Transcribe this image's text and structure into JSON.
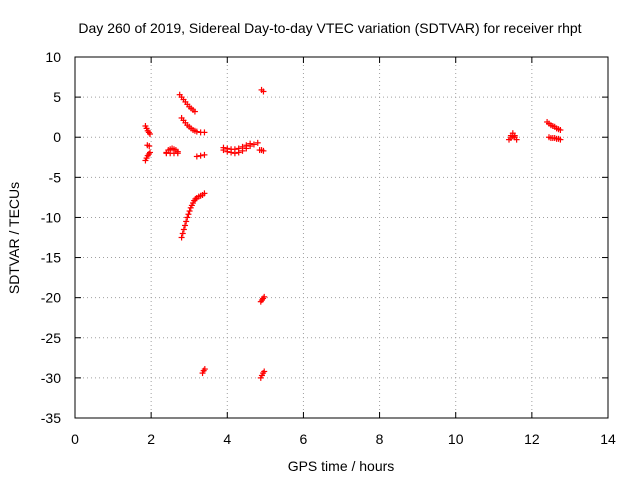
{
  "chart_data": {
    "type": "scatter",
    "title": "Day 260 of 2019, Sidereal Day-to-day VTEC variation (SDTVAR) for receiver rhpt",
    "xlabel": "GPS time / hours",
    "ylabel": "SDTVAR / TECUs",
    "xlim": [
      0,
      14
    ],
    "ylim": [
      -35,
      10
    ],
    "xticks": [
      0,
      2,
      4,
      6,
      8,
      10,
      12,
      14
    ],
    "yticks": [
      10,
      5,
      0,
      -5,
      -10,
      -15,
      -20,
      -25,
      -30,
      -35
    ],
    "xtick_labels": [
      "0",
      "2",
      "4",
      "6",
      "8",
      "10",
      "12",
      "14"
    ],
    "ytick_labels": [
      "10",
      "5",
      "0",
      "-5",
      "-10",
      "-15",
      "-20",
      "-25",
      "-30",
      "-35"
    ],
    "grid": true,
    "marker": "plus",
    "color": "#ff0000",
    "series": [
      {
        "segments": [
          {
            "x": [
              1.85,
              1.88,
              1.91,
              1.94,
              1.97
            ],
            "y": [
              1.4,
              1.1,
              0.8,
              0.6,
              0.4
            ]
          },
          {
            "x": [
              1.9,
              1.95
            ],
            "y": [
              -1.0,
              -1.1
            ]
          },
          {
            "x": [
              1.85,
              1.88,
              1.91,
              1.94,
              1.97
            ],
            "y": [
              -2.9,
              -2.6,
              -2.3,
              -2.1,
              -1.9
            ]
          },
          {
            "x": [
              2.4,
              2.45,
              2.5,
              2.55,
              2.6,
              2.65,
              2.7
            ],
            "y": [
              -1.9,
              -1.6,
              -1.5,
              -1.4,
              -1.5,
              -1.6,
              -1.8
            ]
          },
          {
            "x": [
              2.4,
              2.5,
              2.6,
              2.7
            ],
            "y": [
              -2.0,
              -2.0,
              -2.0,
              -2.0
            ]
          },
          {
            "x": [
              2.75,
              2.8,
              2.85,
              2.9,
              2.95,
              3.0,
              3.05,
              3.1,
              3.15
            ],
            "y": [
              5.3,
              5.0,
              4.7,
              4.4,
              4.1,
              3.8,
              3.6,
              3.4,
              3.2
            ]
          },
          {
            "x": [
              2.8,
              2.85,
              2.9,
              2.95,
              3.0,
              3.05,
              3.1,
              3.15,
              3.2,
              3.3,
              3.4
            ],
            "y": [
              2.4,
              2.1,
              1.8,
              1.5,
              1.3,
              1.1,
              0.9,
              0.8,
              0.7,
              0.6,
              0.6
            ]
          },
          {
            "x": [
              3.2,
              3.3,
              3.4
            ],
            "y": [
              -2.4,
              -2.3,
              -2.2
            ]
          },
          {
            "x": [
              2.8,
              2.83,
              2.86,
              2.89,
              2.92,
              2.95,
              2.98,
              3.01,
              3.04,
              3.07,
              3.1,
              3.13,
              3.16,
              3.19
            ],
            "y": [
              -12.5,
              -12.0,
              -11.5,
              -11.0,
              -10.5,
              -10.0,
              -9.6,
              -9.2,
              -8.8,
              -8.5,
              -8.2,
              -7.9,
              -7.7,
              -7.6
            ]
          },
          {
            "x": [
              3.2,
              3.25,
              3.3,
              3.35,
              3.4
            ],
            "y": [
              -7.6,
              -7.4,
              -7.3,
              -7.2,
              -7.0
            ]
          },
          {
            "x": [
              3.9,
              4.0,
              4.1,
              4.2,
              4.3,
              4.4,
              4.5,
              4.6,
              4.7,
              4.8
            ],
            "y": [
              -1.6,
              -1.8,
              -1.9,
              -2.0,
              -1.9,
              -1.7,
              -1.4,
              -1.1,
              -0.9,
              -0.7
            ]
          },
          {
            "x": [
              3.9,
              4.0,
              4.1,
              4.2,
              4.3,
              4.4,
              4.5,
              4.6
            ],
            "y": [
              -1.3,
              -1.4,
              -1.5,
              -1.5,
              -1.4,
              -1.2,
              -1.0,
              -0.8
            ]
          },
          {
            "x": [
              4.85,
              4.9,
              4.95
            ],
            "y": [
              -1.6,
              -1.6,
              -1.7
            ]
          },
          {
            "x": [
              4.9,
              4.95
            ],
            "y": [
              5.9,
              5.7
            ]
          },
          {
            "x": [
              4.88,
              4.91,
              4.94,
              4.97
            ],
            "y": [
              -20.5,
              -20.3,
              -20.1,
              -19.9
            ]
          },
          {
            "x": [
              3.35,
              3.38,
              3.41
            ],
            "y": [
              -29.4,
              -29.1,
              -28.9
            ]
          },
          {
            "x": [
              4.88,
              4.91,
              4.94,
              4.97
            ],
            "y": [
              -30.0,
              -29.7,
              -29.4,
              -29.2
            ]
          },
          {
            "x": [
              11.4,
              11.45,
              11.5,
              11.55,
              11.6
            ],
            "y": [
              -0.3,
              0.2,
              0.5,
              0.2,
              -0.3
            ]
          },
          {
            "x": [
              11.45,
              11.5,
              11.55
            ],
            "y": [
              -0.1,
              0.1,
              0.0
            ]
          },
          {
            "x": [
              12.4,
              12.45,
              12.5,
              12.55,
              12.6,
              12.65,
              12.7,
              12.75
            ],
            "y": [
              1.9,
              1.7,
              1.5,
              1.4,
              1.3,
              1.1,
              1.0,
              0.9
            ]
          },
          {
            "x": [
              12.45,
              12.5,
              12.55,
              12.6,
              12.65,
              12.7,
              12.75
            ],
            "y": [
              0.0,
              -0.1,
              -0.1,
              -0.1,
              -0.2,
              -0.2,
              -0.3
            ]
          }
        ]
      }
    ]
  }
}
